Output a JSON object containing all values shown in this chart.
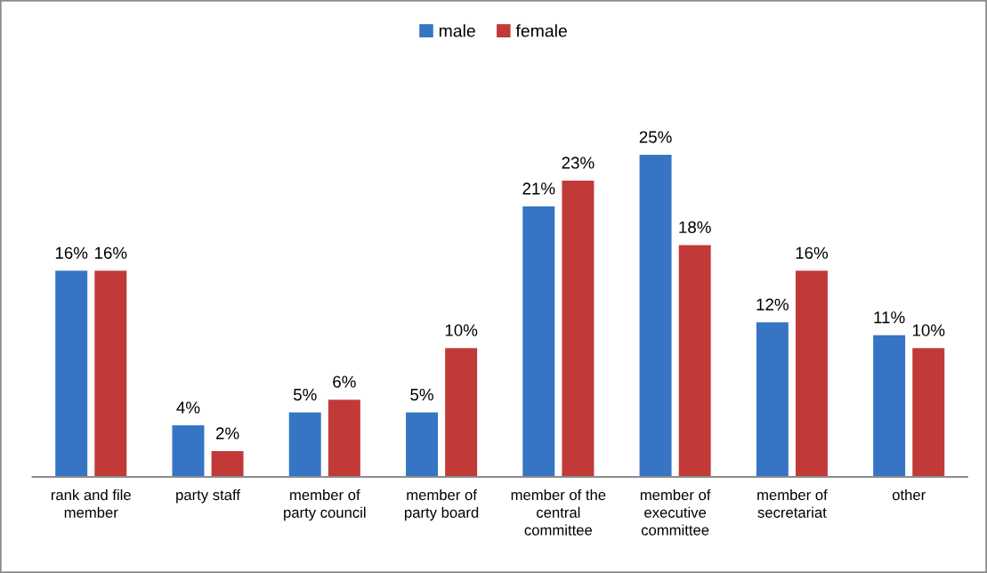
{
  "chart_data": {
    "type": "bar",
    "legend": "top",
    "tick_labels": "x",
    "categories": [
      "rank and file member",
      "party staff",
      "member of party council",
      "member of party board",
      "member of the central committee",
      "member of executive committee",
      "member of secretariat",
      "other"
    ],
    "series": [
      {
        "name": "male",
        "color": "#3674c4",
        "values": [
          16,
          4,
          5,
          5,
          21,
          25,
          12,
          11
        ],
        "value_labels": [
          "16%",
          "4%",
          "5%",
          "5%",
          "21%",
          "25%",
          "12%",
          "11%"
        ]
      },
      {
        "name": "female",
        "color": "#c23a38",
        "values": [
          16,
          2,
          6,
          10,
          23,
          18,
          16,
          10
        ],
        "value_labels": [
          "16%",
          "2%",
          "6%",
          "10%",
          "23%",
          "18%",
          "16%",
          "10%"
        ]
      }
    ]
  }
}
